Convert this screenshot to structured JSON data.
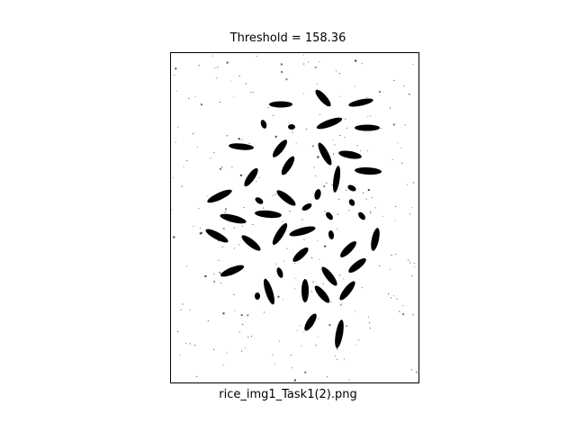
{
  "figure": {
    "title": "Threshold = 158.36",
    "xlabel": "rice_img1_Task1(2).png"
  },
  "image": {
    "kind": "binary thresholded image",
    "foreground_color": "#000000",
    "background_color": "#ffffff"
  }
}
